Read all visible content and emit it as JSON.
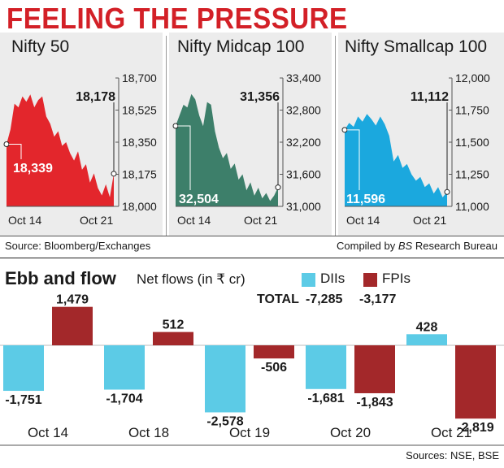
{
  "title": "FEELING THE PRESSURE",
  "colors": {
    "title": "#d32027",
    "nifty": "#e3262c",
    "midcap": "#3d7f6a",
    "smallcap": "#1ba8de",
    "dii": "#5ccbe6",
    "fpi": "#a3282a"
  },
  "chart_data": [
    {
      "type": "area",
      "title": "Nifty 50",
      "x_labels": [
        "Oct 14",
        "Oct 21"
      ],
      "y_ticks": [
        "18,700",
        "18,525",
        "18,350",
        "18,175",
        "18,000"
      ],
      "ylim": [
        18000,
        18700
      ],
      "start_value": 18339,
      "start_label": "18,339",
      "peak_value": 18178,
      "peak_label": "18,178",
      "series": [
        18339,
        18420,
        18560,
        18540,
        18600,
        18570,
        18610,
        18540,
        18580,
        18600,
        18490,
        18450,
        18380,
        18410,
        18330,
        18350,
        18290,
        18250,
        18300,
        18200,
        18230,
        18130,
        18180,
        18100,
        18060,
        18120,
        18050,
        18178
      ]
    },
    {
      "type": "area",
      "title": "Nifty Midcap 100",
      "x_labels": [
        "Oct 14",
        "Oct 21"
      ],
      "y_ticks": [
        "33,400",
        "32,800",
        "32,200",
        "31,600",
        "31,000"
      ],
      "ylim": [
        31000,
        33400
      ],
      "start_value": 32504,
      "start_label": "32,504",
      "peak_value": 31356,
      "peak_label": "31,356",
      "series": [
        32504,
        32700,
        32900,
        32850,
        33100,
        33000,
        32700,
        32500,
        32950,
        32900,
        32400,
        32100,
        31900,
        32000,
        31700,
        31800,
        31500,
        31600,
        31300,
        31450,
        31200,
        31350,
        31150,
        31250,
        31100,
        31200,
        31356
      ]
    },
    {
      "type": "area",
      "title": "Nifty Smallcap 100",
      "x_labels": [
        "Oct 14",
        "Oct 21"
      ],
      "y_ticks": [
        "12,000",
        "11,750",
        "11,500",
        "11,250",
        "11,000"
      ],
      "ylim": [
        11000,
        12000
      ],
      "start_value": 11596,
      "start_label": "11,596",
      "peak_value": 11112,
      "peak_label": "11,112",
      "series": [
        11596,
        11650,
        11620,
        11700,
        11660,
        11720,
        11680,
        11630,
        11700,
        11640,
        11550,
        11350,
        11400,
        11300,
        11330,
        11250,
        11200,
        11230,
        11150,
        11180,
        11100,
        11150,
        11070,
        11112
      ]
    },
    {
      "type": "bar",
      "title": "Ebb and flow",
      "subtitle": "Net flows (in ₹ cr)",
      "categories": [
        "Oct 14",
        "Oct 18",
        "Oct 19",
        "Oct 20",
        "Oct 21"
      ],
      "series": [
        {
          "name": "DIIs",
          "values": [
            -1751,
            -1704,
            -2578,
            -1681,
            428
          ],
          "labels": [
            "-1,751",
            "-1,704",
            "-2,578",
            "-1,681",
            "428"
          ]
        },
        {
          "name": "FPIs",
          "values": [
            1479,
            512,
            -506,
            -1843,
            -2819
          ],
          "labels": [
            "1,479",
            "512",
            "-506",
            "-1,843",
            "-2,819"
          ]
        }
      ],
      "totals_label": "TOTAL",
      "totals": {
        "DIIs": "-7,285",
        "FPIs": "-3,177"
      },
      "ylim": [
        -2900,
        1600
      ]
    }
  ],
  "source_left": "Source: Bloomberg/Exchanges",
  "compiled_prefix": "Compiled by ",
  "compiled_italic": "BS",
  "compiled_suffix": " Research Bureau",
  "bottom_source": "Sources: NSE, BSE"
}
